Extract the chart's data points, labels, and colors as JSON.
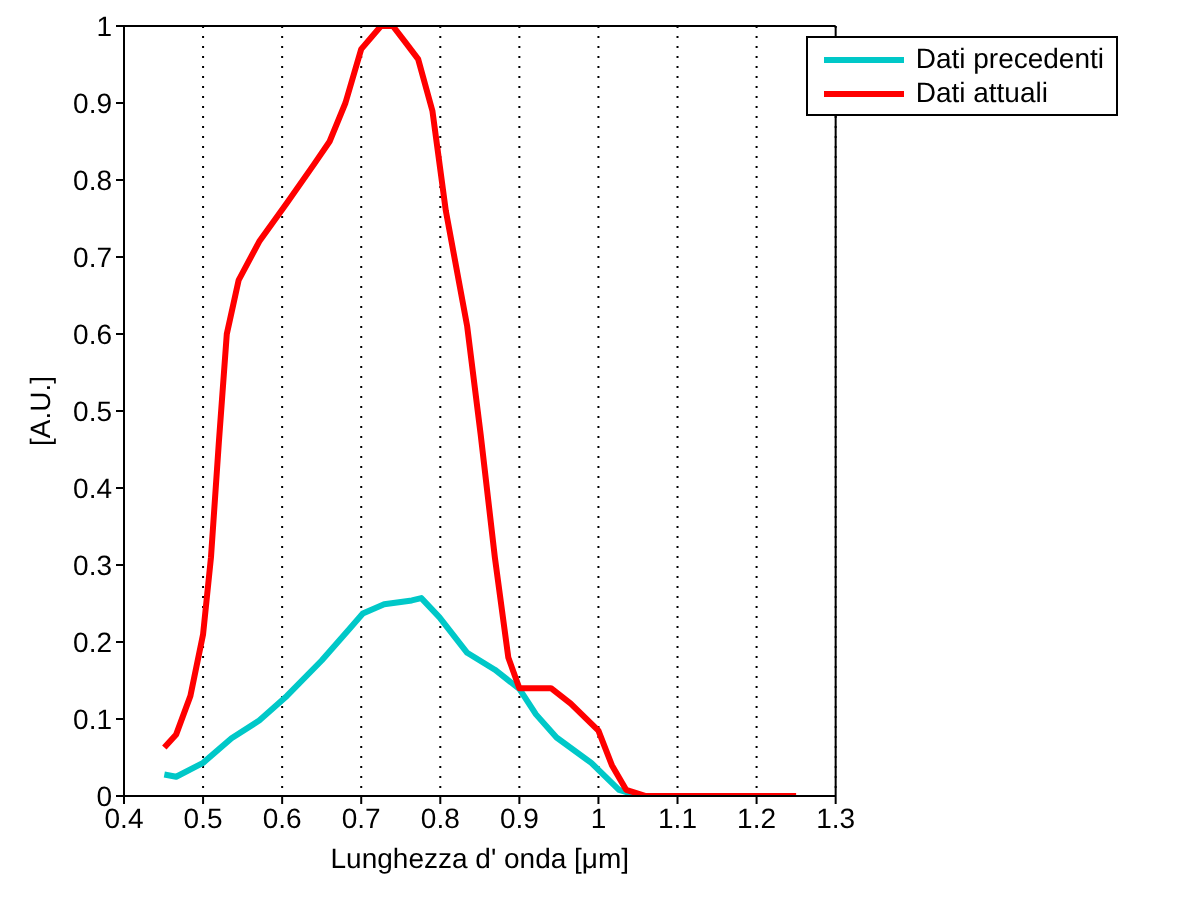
{
  "chart_data": {
    "type": "line",
    "xlabel": "Lunghezza d' onda [μm]",
    "ylabel": "[A.U.]",
    "xlim": [
      0.4,
      1.3
    ],
    "xticks": [
      0.4,
      0.5,
      0.6,
      0.7,
      0.8,
      0.9,
      1,
      1.1,
      1.2,
      1.3
    ],
    "ylim": [
      0,
      1
    ],
    "yticks": [
      0,
      0.1,
      0.2,
      0.3,
      0.4,
      0.5,
      0.6,
      0.7,
      0.8,
      0.9,
      1
    ],
    "grid": "x",
    "legend": "top right",
    "marker": "none",
    "line_style": "solid",
    "series": [
      {
        "name": "Dati precedenti",
        "color": "#00c8c8",
        "x": [
          0.451,
          0.466,
          0.5,
          0.536,
          0.571,
          0.606,
          0.65,
          0.685,
          0.702,
          0.729,
          0.764,
          0.776,
          0.799,
          0.834,
          0.869,
          0.9,
          0.921,
          0.947,
          0.991,
          1.026,
          1.052
        ],
        "values": [
          0.028,
          0.025,
          0.043,
          0.075,
          0.098,
          0.13,
          0.176,
          0.217,
          0.237,
          0.249,
          0.254,
          0.257,
          0.232,
          0.186,
          0.164,
          0.139,
          0.106,
          0.076,
          0.043,
          0.008,
          0
        ]
      },
      {
        "name": "Dati attuali",
        "color": "#ff0000",
        "x": [
          0.451,
          0.466,
          0.484,
          0.5,
          0.51,
          0.52,
          0.53,
          0.545,
          0.571,
          0.606,
          0.64,
          0.66,
          0.68,
          0.7,
          0.725,
          0.74,
          0.755,
          0.772,
          0.79,
          0.807,
          0.834,
          0.851,
          0.869,
          0.886,
          0.9,
          0.92,
          0.94,
          0.965,
          1.0,
          1.017,
          1.035,
          1.06,
          1.25
        ],
        "values": [
          0.063,
          0.08,
          0.13,
          0.21,
          0.31,
          0.46,
          0.6,
          0.67,
          0.72,
          0.77,
          0.82,
          0.85,
          0.9,
          0.97,
          1,
          1,
          0.98,
          0.957,
          0.89,
          0.76,
          0.61,
          0.47,
          0.31,
          0.18,
          0.14,
          0.14,
          0.14,
          0.12,
          0.085,
          0.04,
          0.008,
          0,
          0
        ]
      }
    ]
  }
}
